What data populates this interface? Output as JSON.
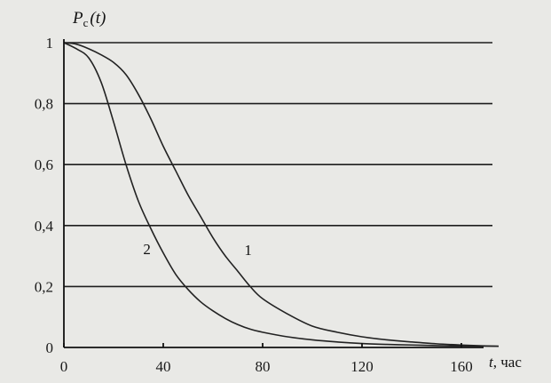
{
  "chart_data": {
    "type": "line",
    "xlabel": {
      "var": "t",
      "unit": ", час"
    },
    "ylabel": {
      "main": "P",
      "sub": "с",
      "arg": "(t)"
    },
    "xlim": [
      0,
      175
    ],
    "ylim": [
      0,
      1
    ],
    "x_ticks": [
      "0",
      "40",
      "80",
      "120",
      "160"
    ],
    "x_tick_values": [
      0,
      40,
      80,
      120,
      160
    ],
    "y_ticks": [
      "0",
      "0,2",
      "0,4",
      "0,6",
      "0,8",
      "1"
    ],
    "y_tick_values": [
      0,
      0.2,
      0.4,
      0.6,
      0.8,
      1
    ],
    "grid": "horizontal",
    "series": [
      {
        "name": "1",
        "x": [
          0,
          5,
          10,
          15,
          20,
          25,
          30,
          35,
          40,
          45,
          50,
          55,
          60,
          65,
          70,
          75,
          80,
          90,
          100,
          110,
          120,
          130,
          140,
          150,
          160,
          170,
          175
        ],
        "y": [
          1,
          0.995,
          0.98,
          0.96,
          0.935,
          0.895,
          0.83,
          0.75,
          0.66,
          0.58,
          0.5,
          0.43,
          0.36,
          0.3,
          0.25,
          0.2,
          0.16,
          0.11,
          0.07,
          0.05,
          0.035,
          0.025,
          0.018,
          0.012,
          0.008,
          0.005,
          0.004
        ]
      },
      {
        "name": "2",
        "x": [
          0,
          5,
          10,
          15,
          20,
          25,
          30,
          35,
          40,
          45,
          50,
          55,
          60,
          65,
          70,
          75,
          80,
          90,
          100,
          110,
          120,
          130,
          140,
          150,
          160,
          175
        ],
        "y": [
          1,
          0.98,
          0.95,
          0.87,
          0.74,
          0.6,
          0.48,
          0.39,
          0.31,
          0.24,
          0.19,
          0.15,
          0.12,
          0.095,
          0.075,
          0.06,
          0.05,
          0.035,
          0.025,
          0.018,
          0.013,
          0.01,
          0.008,
          0.006,
          0.005,
          0.004
        ]
      }
    ]
  }
}
